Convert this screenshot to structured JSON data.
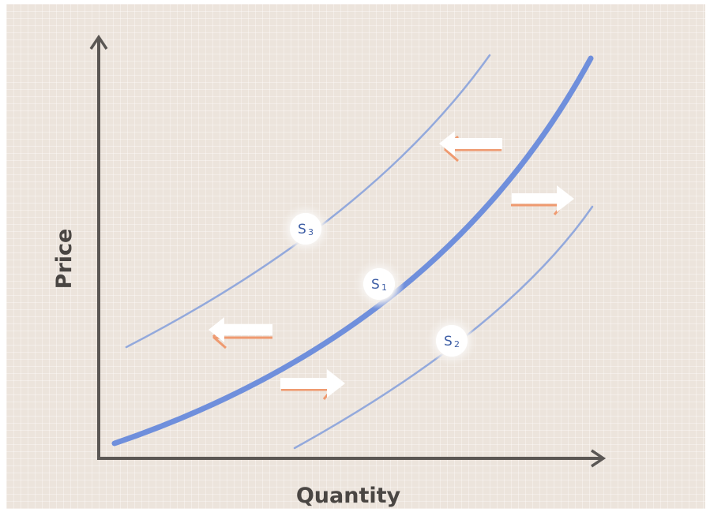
{
  "axes": {
    "y_label": "Price",
    "x_label": "Quantity"
  },
  "curves": {
    "s1": {
      "label": "S",
      "sub": "1"
    },
    "s2": {
      "label": "S",
      "sub": "2"
    },
    "s3": {
      "label": "S",
      "sub": "3"
    }
  },
  "colors": {
    "axis": "#5b5754",
    "main_curve": "#6f8fdc",
    "shifted_curve": "#93a9dc",
    "node_text": "#3f5fa6",
    "arrow_fill": "#ffffff",
    "arrow_shadow": "#ef9a70",
    "background": "#ece4dc"
  },
  "arrows": [
    {
      "id": "arrow-left-upper",
      "direction": "left"
    },
    {
      "id": "arrow-right-upper",
      "direction": "right"
    },
    {
      "id": "arrow-left-lower",
      "direction": "left"
    },
    {
      "id": "arrow-right-lower",
      "direction": "right"
    }
  ]
}
